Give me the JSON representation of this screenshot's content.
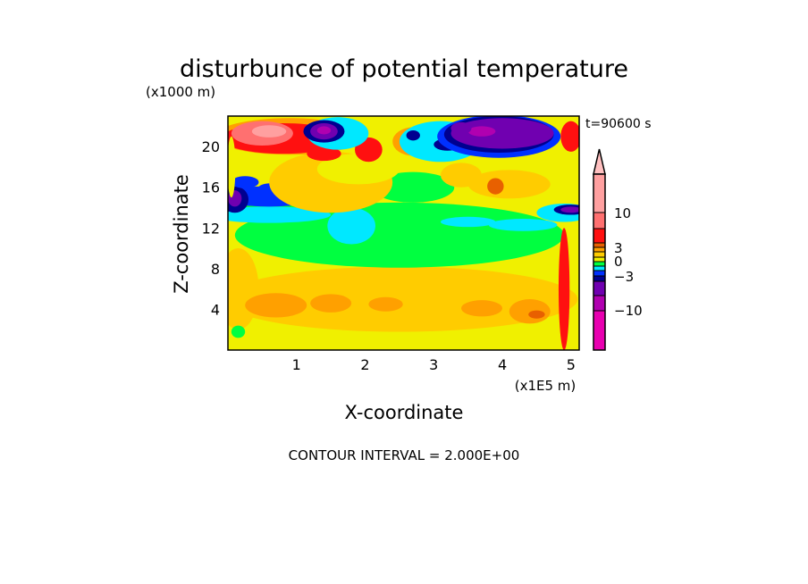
{
  "chart_data": {
    "type": "heatmap",
    "subtype": "filled-contour",
    "title": "disturbunce of potential temperature",
    "xlabel": "X-coordinate",
    "ylabel": "Z-coordinate",
    "x_unit": "(x1E5 m)",
    "y_unit": "(x1000 m)",
    "time_label": "t=90600 s",
    "footer": "CONTOUR INTERVAL = 2.000E+00",
    "xlim": [
      0,
      5.12
    ],
    "ylim": [
      0,
      23
    ],
    "x_ticks": [
      "1",
      "2",
      "3",
      "4",
      "5"
    ],
    "x_tick_values": [
      1,
      2,
      3,
      4,
      5
    ],
    "y_ticks": [
      "4",
      "8",
      "12",
      "16",
      "20"
    ],
    "y_tick_values": [
      4,
      8,
      12,
      16,
      20
    ],
    "colorbar": {
      "labels": [
        "10",
        "3",
        "0",
        "−3",
        "−10"
      ],
      "label_values": [
        10,
        3,
        0,
        -3,
        -10
      ],
      "bands": [
        {
          "range": "> 16",
          "color": "#ffc0c0"
        },
        {
          "range": "10 to 16",
          "color": "#ffa0a0"
        },
        {
          "range": "7 to 10",
          "color": "#ff7070"
        },
        {
          "range": "4 to 7",
          "color": "#ff1010"
        },
        {
          "range": "3 to 4",
          "color": "#e86000"
        },
        {
          "range": "2 to 3",
          "color": "#ffa000"
        },
        {
          "range": "1 to 2",
          "color": "#ffcc00"
        },
        {
          "range": "0 to 1",
          "color": "#f0f000"
        },
        {
          "range": "-1 to 0",
          "color": "#00ff40"
        },
        {
          "range": "-2 to -1",
          "color": "#00e8ff"
        },
        {
          "range": "-3 to -2",
          "color": "#0030ff"
        },
        {
          "range": "-4 to -3",
          "color": "#000090"
        },
        {
          "range": "-7 to -4",
          "color": "#7000b0"
        },
        {
          "range": "-10 to -7",
          "color": "#b000b0"
        },
        {
          "range": "< -10",
          "color": "#e800b0"
        }
      ]
    }
  }
}
